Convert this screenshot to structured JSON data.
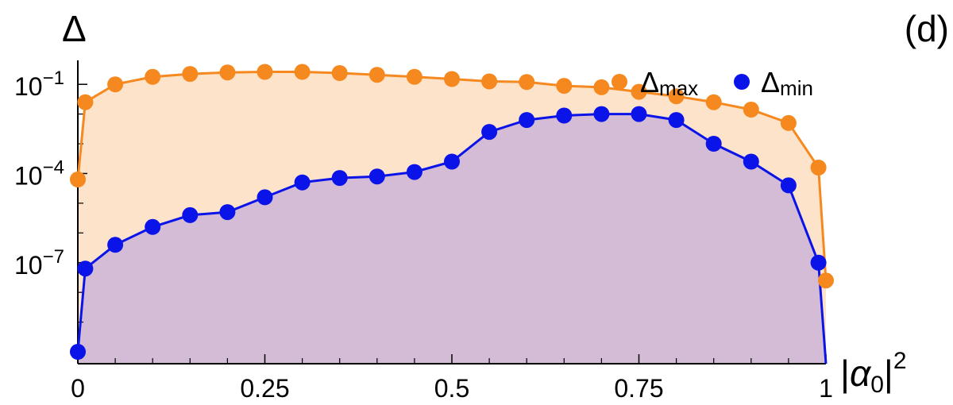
{
  "chart_data": {
    "type": "scatter",
    "panel_label": "(d)",
    "ylabel": "Δ",
    "xlabel": {
      "base": "|α",
      "subscript": "0",
      "post": "|",
      "superscript": "2"
    },
    "y_scale": "log",
    "xlim": [
      0,
      1
    ],
    "ylim_log10": [
      -10.4,
      -0.3
    ],
    "x_ticks": [
      {
        "value": 0,
        "label": "0"
      },
      {
        "value": 0.25,
        "label": "0.25"
      },
      {
        "value": 0.5,
        "label": "0.5"
      },
      {
        "value": 0.75,
        "label": "0.75"
      },
      {
        "value": 1,
        "label": "1"
      }
    ],
    "y_ticks": [
      {
        "log10": -1,
        "base": "10",
        "exp": "−1"
      },
      {
        "log10": -4,
        "base": "10",
        "exp": "−4"
      },
      {
        "log10": -7,
        "base": "10",
        "exp": "−7"
      }
    ],
    "x": [
      0,
      0.01,
      0.05,
      0.1,
      0.15,
      0.2,
      0.25,
      0.3,
      0.35,
      0.4,
      0.45,
      0.5,
      0.55,
      0.6,
      0.65,
      0.7,
      0.75,
      0.8,
      0.85,
      0.9,
      0.95,
      0.99,
      1
    ],
    "series": [
      {
        "name": "Δmax",
        "legend_base": "Δ",
        "legend_sub": "max",
        "color": "#f5891f",
        "fill": "#fde3c9",
        "log10_values": [
          -4.2,
          -1.6,
          -1.0,
          -0.75,
          -0.65,
          -0.6,
          -0.58,
          -0.58,
          -0.62,
          -0.68,
          -0.75,
          -0.82,
          -0.9,
          -0.92,
          -1.05,
          -1.1,
          -1.25,
          -1.4,
          -1.6,
          -1.85,
          -2.3,
          -3.8,
          -7.6
        ]
      },
      {
        "name": "Δmin",
        "legend_base": "Δ",
        "legend_sub": "min",
        "color": "#0a14e8",
        "fill": "#d4bcd6",
        "log10_values": [
          -10.0,
          -7.2,
          -6.4,
          -5.8,
          -5.4,
          -5.3,
          -4.8,
          -4.3,
          -4.15,
          -4.1,
          -3.95,
          -3.6,
          -2.6,
          -2.2,
          -2.05,
          -2.0,
          -2.0,
          -2.2,
          -3.0,
          -3.6,
          -4.4,
          -7.0,
          -10.5
        ]
      }
    ]
  }
}
